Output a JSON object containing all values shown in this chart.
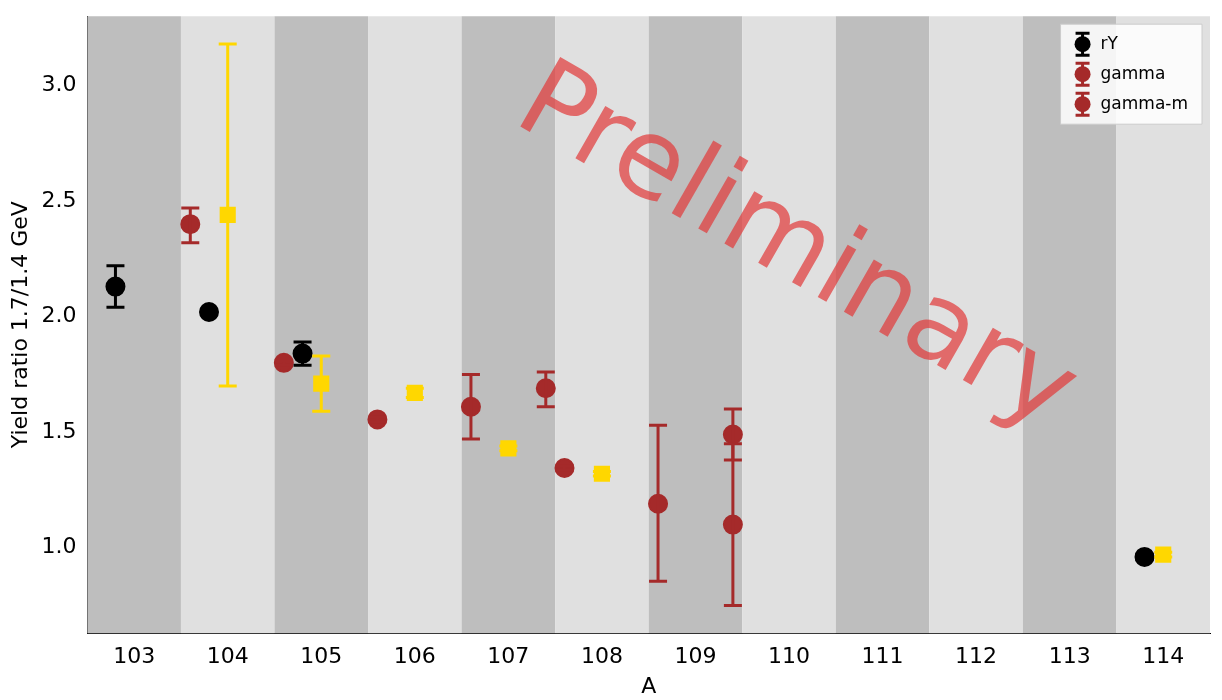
{
  "chart_data": {
    "type": "scatter",
    "xlabel": "A",
    "ylabel": "Yield ratio 1.7/1.4 GeV",
    "xlim": [
      102.5,
      114.5
    ],
    "xticks": [
      103,
      104,
      105,
      106,
      107,
      108,
      109,
      110,
      111,
      112,
      113,
      114
    ],
    "ylim": [
      0.63,
      3.3
    ],
    "yticks": [
      {
        "value": 1,
        "label": "1.0"
      },
      {
        "value": 1.5,
        "label": "1.5"
      },
      {
        "value": 2,
        "label": "2.0"
      },
      {
        "value": 2.5,
        "label": "2.5"
      },
      {
        "value": 3,
        "label": "3.0"
      }
    ],
    "grid": false,
    "legend": "top right",
    "annotations": [
      "Preliminary"
    ],
    "bands": [
      {
        "axis": "x",
        "from": 102.5,
        "to": 103.5,
        "color": "#bebebe"
      },
      {
        "axis": "x",
        "from": 103.5,
        "to": 104.5,
        "color": "#e0e0e0"
      },
      {
        "axis": "x",
        "from": 104.5,
        "to": 105.5,
        "color": "#bebebe"
      },
      {
        "axis": "x",
        "from": 105.5,
        "to": 106.5,
        "color": "#e0e0e0"
      },
      {
        "axis": "x",
        "from": 106.5,
        "to": 107.5,
        "color": "#bebebe"
      },
      {
        "axis": "x",
        "from": 107.5,
        "to": 108.5,
        "color": "#e0e0e0"
      },
      {
        "axis": "x",
        "from": 108.5,
        "to": 109.5,
        "color": "#bebebe"
      },
      {
        "axis": "x",
        "from": 109.5,
        "to": 110.5,
        "color": "#e0e0e0"
      },
      {
        "axis": "x",
        "from": 110.5,
        "to": 111.5,
        "color": "#bebebe"
      },
      {
        "axis": "x",
        "from": 111.5,
        "to": 112.5,
        "color": "#e0e0e0"
      },
      {
        "axis": "x",
        "from": 112.5,
        "to": 113.5,
        "color": "#bebebe"
      },
      {
        "axis": "x",
        "from": 113.5,
        "to": 114.5,
        "color": "#e0e0e0"
      }
    ],
    "series": [
      {
        "name": "rY",
        "color": "#000000",
        "marker": "circle",
        "x": [
          102.8,
          103.8,
          104.8,
          113.8
        ],
        "values": [
          2.13,
          2.02,
          1.84,
          0.96
        ],
        "errors": [
          [
            2.04,
            2.22
          ],
          0.01,
          [
            1.79,
            1.89
          ],
          0.01
        ]
      },
      {
        "name": "gamma",
        "color": "#a52a2a",
        "marker": "circle",
        "x": [
          103.6,
          104.6,
          105.6,
          106.6,
          107.6,
          108.6
        ],
        "values": [
          2.4,
          1.8,
          1.555,
          1.61,
          1.345,
          1.19
        ],
        "errors": [
          [
            2.32,
            2.47
          ],
          0.01,
          0.01,
          [
            1.47,
            1.75
          ],
          0.01,
          [
            0.855,
            1.53
          ]
        ]
      },
      {
        "color": "#ffd700",
        "marker": "square",
        "x": [
          104,
          105,
          106,
          107,
          108,
          114
        ],
        "values": [
          2.44,
          1.71,
          1.67,
          1.43,
          1.32,
          0.97
        ],
        "errors": [
          [
            1.7,
            3.18
          ],
          [
            1.59,
            1.83
          ],
          0.02,
          0.01,
          0.01,
          0.01
        ]
      },
      {
        "name": "gamma-m",
        "color": "#a52a2a",
        "marker": "circle",
        "x": [
          107.4,
          109.4,
          109.4
        ],
        "values": [
          1.69,
          1.49,
          1.1
        ],
        "errors": [
          [
            1.61,
            1.76
          ],
          [
            1.38,
            1.6
          ],
          [
            0.75,
            1.45
          ]
        ]
      }
    ]
  }
}
